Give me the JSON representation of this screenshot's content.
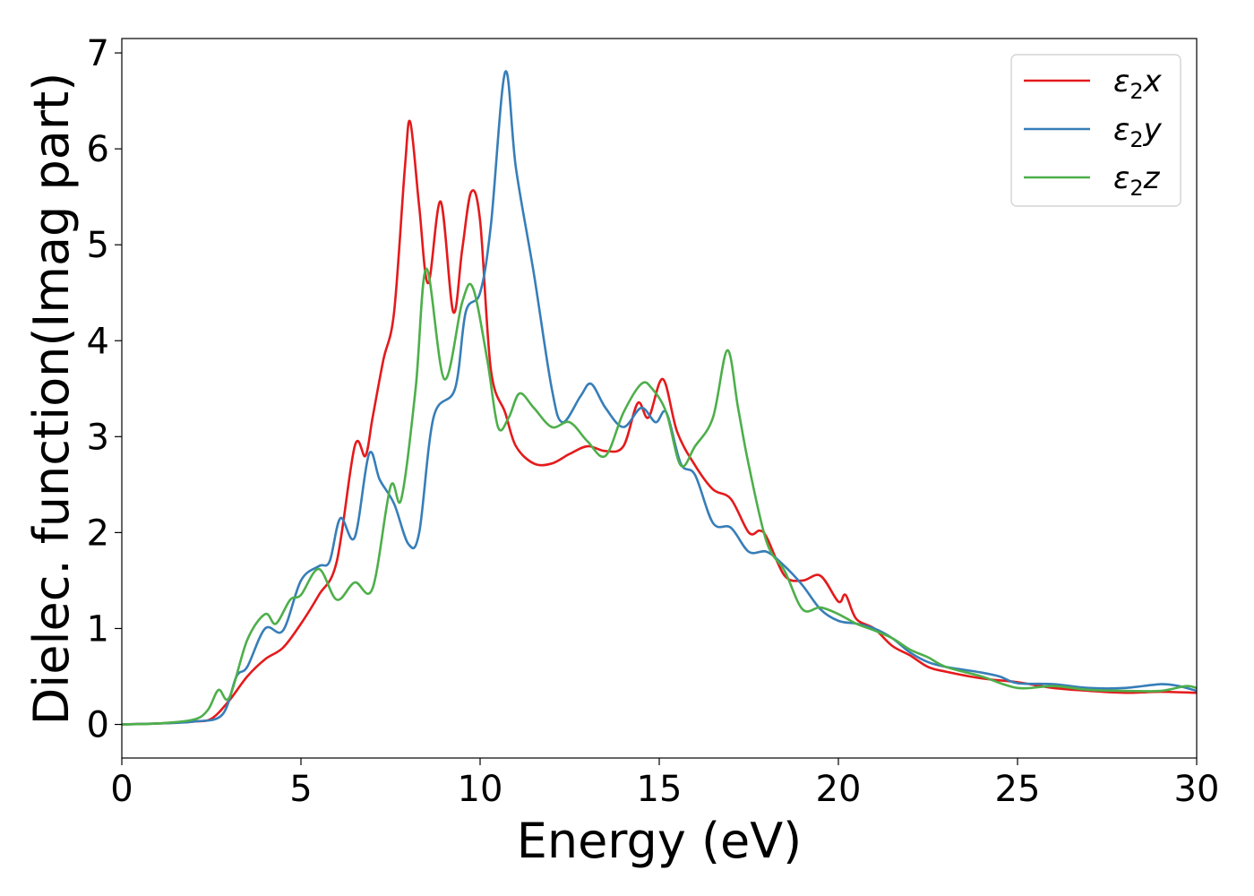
{
  "chart_data": {
    "type": "line",
    "xlabel": "Energy (eV)",
    "ylabel": "Dielec. function(Imag part)",
    "xlim": [
      0,
      30
    ],
    "ylim": [
      -0.35,
      7.15
    ],
    "xticks": [
      0,
      5,
      10,
      15,
      20,
      25,
      30
    ],
    "yticks": [
      0,
      1,
      2,
      3,
      4,
      5,
      6,
      7
    ],
    "grid": false,
    "legend_position": "top-right",
    "series": [
      {
        "name": "ε₂x",
        "legend": {
          "base": "ε",
          "sub": "2",
          "tail": "x"
        },
        "color": "#e41a1c",
        "points": [
          [
            0,
            0
          ],
          [
            1,
            0.01
          ],
          [
            2,
            0.03
          ],
          [
            2.5,
            0.06
          ],
          [
            3,
            0.25
          ],
          [
            3.5,
            0.5
          ],
          [
            4,
            0.68
          ],
          [
            4.5,
            0.8
          ],
          [
            5,
            1.05
          ],
          [
            5.5,
            1.35
          ],
          [
            6,
            1.7
          ],
          [
            6.5,
            2.9
          ],
          [
            6.8,
            2.8
          ],
          [
            7,
            3.2
          ],
          [
            7.3,
            3.8
          ],
          [
            7.6,
            4.3
          ],
          [
            7.9,
            5.8
          ],
          [
            8.05,
            6.28
          ],
          [
            8.3,
            5.4
          ],
          [
            8.55,
            4.6
          ],
          [
            8.9,
            5.45
          ],
          [
            9.25,
            4.3
          ],
          [
            9.5,
            4.95
          ],
          [
            9.75,
            5.55
          ],
          [
            10,
            5.25
          ],
          [
            10.3,
            3.7
          ],
          [
            10.7,
            3.25
          ],
          [
            11,
            2.9
          ],
          [
            11.5,
            2.72
          ],
          [
            12,
            2.72
          ],
          [
            12.5,
            2.82
          ],
          [
            13,
            2.9
          ],
          [
            13.5,
            2.85
          ],
          [
            14,
            2.9
          ],
          [
            14.4,
            3.35
          ],
          [
            14.7,
            3.2
          ],
          [
            15.1,
            3.6
          ],
          [
            15.5,
            3.05
          ],
          [
            16,
            2.7
          ],
          [
            16.5,
            2.45
          ],
          [
            17,
            2.35
          ],
          [
            17.5,
            2.0
          ],
          [
            17.8,
            2.02
          ],
          [
            18,
            1.95
          ],
          [
            18.5,
            1.55
          ],
          [
            19,
            1.5
          ],
          [
            19.5,
            1.55
          ],
          [
            20,
            1.28
          ],
          [
            20.2,
            1.35
          ],
          [
            20.5,
            1.1
          ],
          [
            21,
            1.0
          ],
          [
            21.5,
            0.82
          ],
          [
            22,
            0.72
          ],
          [
            22.5,
            0.6
          ],
          [
            23,
            0.55
          ],
          [
            24,
            0.48
          ],
          [
            25,
            0.44
          ],
          [
            26,
            0.38
          ],
          [
            27,
            0.35
          ],
          [
            28,
            0.33
          ],
          [
            29,
            0.34
          ],
          [
            30,
            0.33
          ]
        ]
      },
      {
        "name": "ε₂y",
        "legend": {
          "base": "ε",
          "sub": "2",
          "tail": "y"
        },
        "color": "#377eb8",
        "points": [
          [
            0,
            0
          ],
          [
            1,
            0.01
          ],
          [
            2,
            0.03
          ],
          [
            2.8,
            0.1
          ],
          [
            3.2,
            0.5
          ],
          [
            3.5,
            0.6
          ],
          [
            4,
            1.0
          ],
          [
            4.5,
            0.98
          ],
          [
            5,
            1.5
          ],
          [
            5.5,
            1.65
          ],
          [
            5.8,
            1.7
          ],
          [
            6.1,
            2.15
          ],
          [
            6.5,
            1.95
          ],
          [
            6.9,
            2.82
          ],
          [
            7.2,
            2.55
          ],
          [
            7.6,
            2.3
          ],
          [
            8,
            1.88
          ],
          [
            8.3,
            2.0
          ],
          [
            8.7,
            3.2
          ],
          [
            9.3,
            3.5
          ],
          [
            9.6,
            4.3
          ],
          [
            10,
            4.5
          ],
          [
            10.3,
            5.2
          ],
          [
            10.7,
            6.8
          ],
          [
            11,
            5.8
          ],
          [
            11.5,
            4.7
          ],
          [
            12,
            3.5
          ],
          [
            12.3,
            3.15
          ],
          [
            12.8,
            3.42
          ],
          [
            13.1,
            3.55
          ],
          [
            13.5,
            3.3
          ],
          [
            14,
            3.1
          ],
          [
            14.5,
            3.3
          ],
          [
            14.9,
            3.15
          ],
          [
            15.2,
            3.25
          ],
          [
            15.6,
            2.72
          ],
          [
            16,
            2.6
          ],
          [
            16.5,
            2.1
          ],
          [
            17,
            2.05
          ],
          [
            17.5,
            1.8
          ],
          [
            18,
            1.8
          ],
          [
            18.5,
            1.65
          ],
          [
            19,
            1.45
          ],
          [
            19.5,
            1.2
          ],
          [
            20,
            1.08
          ],
          [
            20.5,
            1.05
          ],
          [
            21,
            1.0
          ],
          [
            21.5,
            0.9
          ],
          [
            22,
            0.75
          ],
          [
            22.5,
            0.65
          ],
          [
            23,
            0.6
          ],
          [
            23.5,
            0.57
          ],
          [
            24,
            0.54
          ],
          [
            24.5,
            0.5
          ],
          [
            25,
            0.43
          ],
          [
            26,
            0.42
          ],
          [
            27,
            0.38
          ],
          [
            28,
            0.38
          ],
          [
            29,
            0.42
          ],
          [
            29.5,
            0.4
          ],
          [
            30,
            0.35
          ]
        ]
      },
      {
        "name": "ε₂z",
        "legend": {
          "base": "ε",
          "sub": "2",
          "tail": "z"
        },
        "color": "#4daf4a",
        "points": [
          [
            0,
            0
          ],
          [
            1,
            0.01
          ],
          [
            2,
            0.05
          ],
          [
            2.4,
            0.15
          ],
          [
            2.7,
            0.36
          ],
          [
            3.0,
            0.28
          ],
          [
            3.5,
            0.88
          ],
          [
            4,
            1.15
          ],
          [
            4.3,
            1.05
          ],
          [
            4.7,
            1.3
          ],
          [
            5,
            1.35
          ],
          [
            5.5,
            1.62
          ],
          [
            6,
            1.3
          ],
          [
            6.5,
            1.48
          ],
          [
            7,
            1.42
          ],
          [
            7.5,
            2.48
          ],
          [
            7.8,
            2.35
          ],
          [
            8.2,
            3.5
          ],
          [
            8.5,
            4.75
          ],
          [
            9,
            3.6
          ],
          [
            9.5,
            4.4
          ],
          [
            9.8,
            4.55
          ],
          [
            10.2,
            3.8
          ],
          [
            10.5,
            3.1
          ],
          [
            10.8,
            3.2
          ],
          [
            11.1,
            3.45
          ],
          [
            11.5,
            3.3
          ],
          [
            12,
            3.1
          ],
          [
            12.5,
            3.15
          ],
          [
            13,
            2.95
          ],
          [
            13.5,
            2.8
          ],
          [
            14,
            3.25
          ],
          [
            14.5,
            3.55
          ],
          [
            14.8,
            3.5
          ],
          [
            15.2,
            3.25
          ],
          [
            15.6,
            2.7
          ],
          [
            16,
            2.9
          ],
          [
            16.5,
            3.2
          ],
          [
            16.9,
            3.9
          ],
          [
            17.2,
            3.3
          ],
          [
            17.5,
            2.7
          ],
          [
            18,
            1.9
          ],
          [
            18.5,
            1.6
          ],
          [
            19,
            1.2
          ],
          [
            19.5,
            1.22
          ],
          [
            20,
            1.15
          ],
          [
            20.5,
            1.05
          ],
          [
            21,
            0.98
          ],
          [
            21.5,
            0.9
          ],
          [
            22,
            0.78
          ],
          [
            22.5,
            0.7
          ],
          [
            23,
            0.6
          ],
          [
            24,
            0.5
          ],
          [
            25,
            0.38
          ],
          [
            26,
            0.4
          ],
          [
            27,
            0.36
          ],
          [
            28,
            0.35
          ],
          [
            29,
            0.35
          ],
          [
            29.7,
            0.4
          ],
          [
            30,
            0.38
          ]
        ]
      }
    ]
  }
}
